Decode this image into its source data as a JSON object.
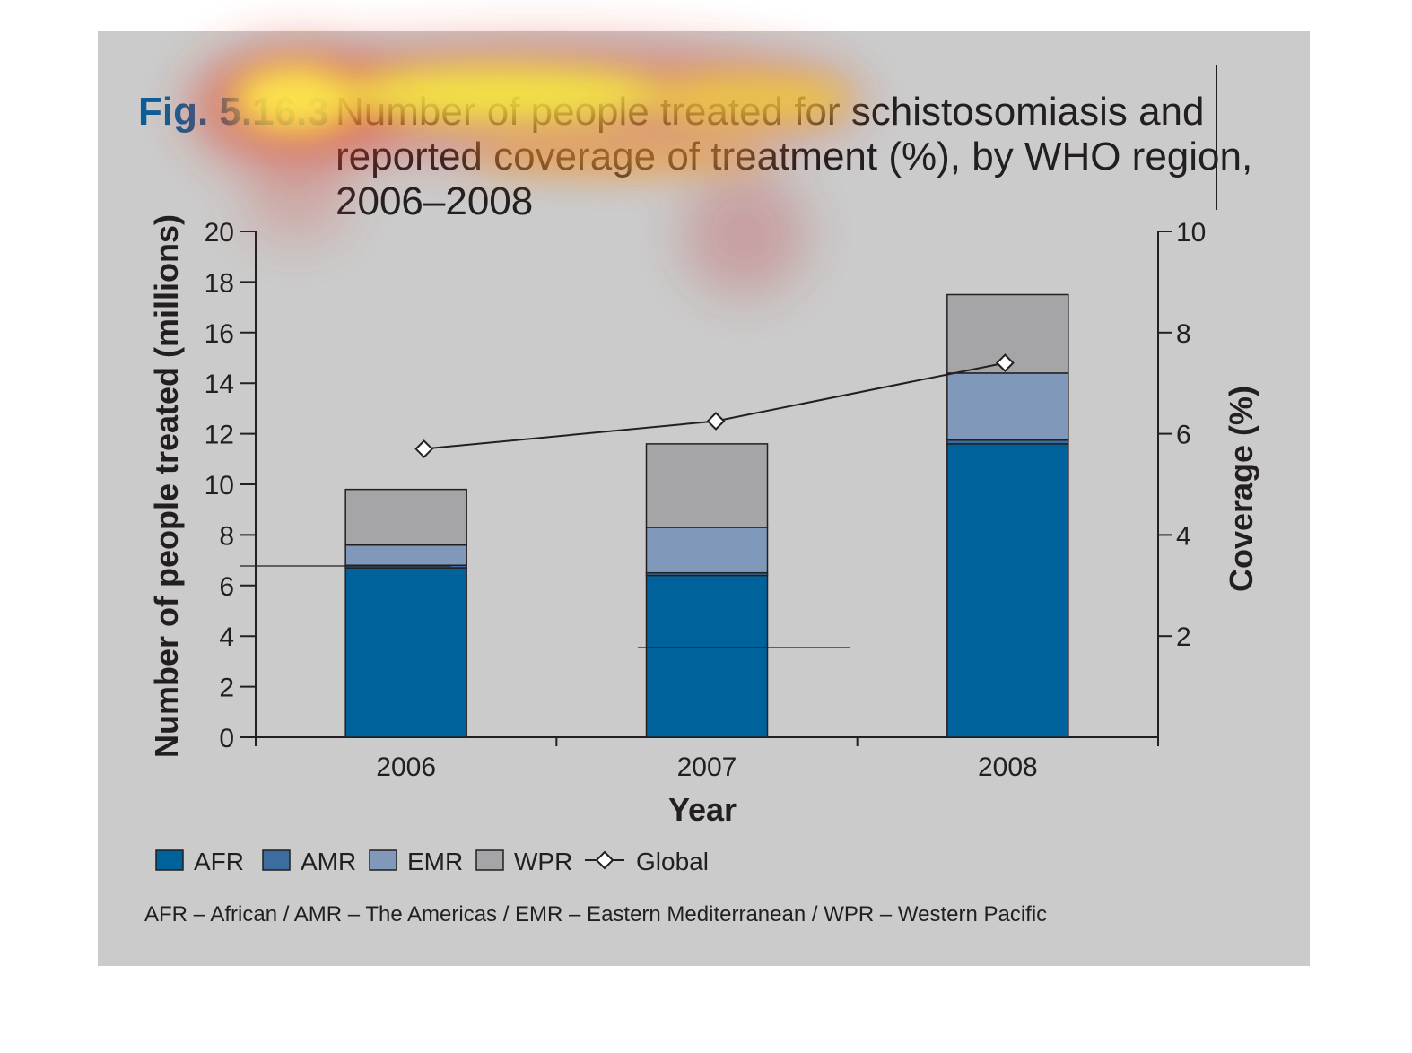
{
  "figure": {
    "label": "Fig. 5.16.3",
    "title_lines": [
      "Number of people treated for schistosomiasis and",
      "reported coverage of treatment (%), by WHO region,",
      "2006–2008"
    ],
    "footnote": "AFR – African / AMR – The Americas / EMR – Eastern Mediterranean / WPR – Western Pacific"
  },
  "colors": {
    "AFR": "#00629b",
    "AMR": "#3d6d9e",
    "EMR": "#8099bb",
    "WPR": "#a5a5a7",
    "panel": "#cbcbcb",
    "ink": "#231f20"
  },
  "chart_data": {
    "type": "bar",
    "stacked": true,
    "title": "Number of people treated for schistosomiasis and reported coverage of treatment (%), by WHO region, 2006–2008",
    "xlabel": "Year",
    "ylabel": "Number of people treated (millions)",
    "y2label": "Coverage (%)",
    "categories": [
      "2006",
      "2007",
      "2008"
    ],
    "ylim": [
      0,
      20
    ],
    "y2lim": [
      0,
      10
    ],
    "yticks": [
      0,
      2,
      4,
      6,
      8,
      10,
      12,
      14,
      16,
      18,
      20
    ],
    "y2ticks": [
      2,
      4,
      6,
      8,
      10
    ],
    "series": [
      {
        "name": "AFR",
        "values": [
          6.7,
          6.4,
          11.6
        ]
      },
      {
        "name": "AMR",
        "values": [
          0.1,
          0.1,
          0.15
        ]
      },
      {
        "name": "EMR",
        "values": [
          0.8,
          1.8,
          2.65
        ]
      },
      {
        "name": "WPR",
        "values": [
          2.2,
          3.3,
          3.1
        ]
      }
    ],
    "line_series": {
      "name": "Global",
      "axis": "right",
      "values": [
        5.7,
        6.25,
        7.4
      ]
    },
    "legend": [
      "AFR",
      "AMR",
      "EMR",
      "WPR",
      "Global"
    ],
    "legend_position": "bottom-left",
    "grid": false
  }
}
